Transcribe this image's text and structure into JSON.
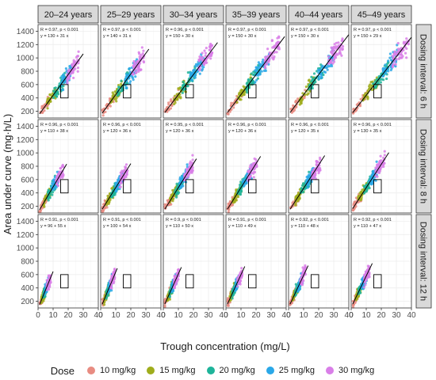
{
  "chart_data": {
    "type": "scatter",
    "xlabel": "Trough concentration (mg/L)",
    "ylabel": "Area under curve (mg·h/L)",
    "xlim": [
      0,
      40
    ],
    "x_ticks": [
      0,
      10,
      20,
      30,
      40
    ],
    "age_groups": [
      "20–24 years",
      "25–29 years",
      "30–34 years",
      "35–39 years",
      "40–44 years",
      "45–49 years"
    ],
    "dosing_intervals": [
      "Dosing interval: 6 h",
      "Dosing interval: 8 h",
      "Dosing interval: 12 h"
    ],
    "rows": [
      {
        "ylim": [
          100,
          1500
        ],
        "y_ticks": [
          200,
          400,
          600,
          800,
          1000,
          1200,
          1400
        ]
      },
      {
        "ylim": [
          100,
          1500
        ],
        "y_ticks": [
          200,
          400,
          600,
          800,
          1000,
          1200,
          1400
        ]
      },
      {
        "ylim": [
          100,
          1500
        ],
        "y_ticks": [
          200,
          400,
          600,
          800,
          1000,
          1200,
          1400
        ]
      }
    ],
    "reference_box": {
      "x_range": [
        15,
        20
      ],
      "y_range": [
        400,
        600
      ]
    },
    "grid": true,
    "legend_position": "bottom",
    "legend": {
      "title": "Dose",
      "entries": [
        {
          "label": "10 mg/kg",
          "color": "#E88C82"
        },
        {
          "label": "15 mg/kg",
          "color": "#9FAD1C"
        },
        {
          "label": "20 mg/kg",
          "color": "#1EB49A"
        },
        {
          "label": "25 mg/kg",
          "color": "#2AA8E8"
        },
        {
          "label": "30 mg/kg",
          "color": "#D97FE8"
        }
      ]
    },
    "panels": [
      [
        {
          "r": "0.97",
          "eq": "y = 130 + 31 x",
          "intercept": 130,
          "slope": 31,
          "xmax": 28
        },
        {
          "r": "0.97",
          "eq": "y = 140 + 31 x",
          "intercept": 140,
          "slope": 31,
          "xmax": 30
        },
        {
          "r": "0.96",
          "eq": "y = 150 + 30 x",
          "intercept": 150,
          "slope": 30,
          "xmax": 34
        },
        {
          "r": "0.97",
          "eq": "y = 150 + 30 x",
          "intercept": 150,
          "slope": 30,
          "xmax": 37
        },
        {
          "r": "0.97",
          "eq": "y = 150 + 30 x",
          "intercept": 150,
          "slope": 30,
          "xmax": 38
        },
        {
          "r": "0.97",
          "eq": "y = 150 + 29 x",
          "intercept": 150,
          "slope": 29,
          "xmax": 40
        }
      ],
      [
        {
          "r": "0.96",
          "eq": "y = 110 + 38 x",
          "intercept": 110,
          "slope": 38,
          "xmax": 17
        },
        {
          "r": "0.96",
          "eq": "y = 120 + 36 x",
          "intercept": 120,
          "slope": 36,
          "xmax": 18
        },
        {
          "r": "0.95",
          "eq": "y = 120 + 36 x",
          "intercept": 120,
          "slope": 36,
          "xmax": 20
        },
        {
          "r": "0.96",
          "eq": "y = 120 + 36 x",
          "intercept": 120,
          "slope": 36,
          "xmax": 21
        },
        {
          "r": "0.96",
          "eq": "y = 120 + 35 x",
          "intercept": 120,
          "slope": 35,
          "xmax": 22
        },
        {
          "r": "0.96",
          "eq": "y = 130 + 35 x",
          "intercept": 130,
          "slope": 35,
          "xmax": 23
        }
      ],
      [
        {
          "r": "0.91",
          "eq": "y = 96 + 55 x",
          "intercept": 96,
          "slope": 55,
          "xmax": 8
        },
        {
          "r": "0.91",
          "eq": "y = 100 + 54 x",
          "intercept": 100,
          "slope": 54,
          "xmax": 9
        },
        {
          "r": "0.9",
          "eq": "y = 110 + 50 x",
          "intercept": 110,
          "slope": 50,
          "xmax": 10
        },
        {
          "r": "0.91",
          "eq": "y = 110 + 49 x",
          "intercept": 110,
          "slope": 49,
          "xmax": 10.5
        },
        {
          "r": "0.92",
          "eq": "y = 110 + 48 x",
          "intercept": 110,
          "slope": 48,
          "xmax": 11
        },
        {
          "r": "0.92",
          "eq": "y = 110 + 47 x",
          "intercept": 110,
          "slope": 47,
          "xmax": 12
        }
      ]
    ]
  }
}
